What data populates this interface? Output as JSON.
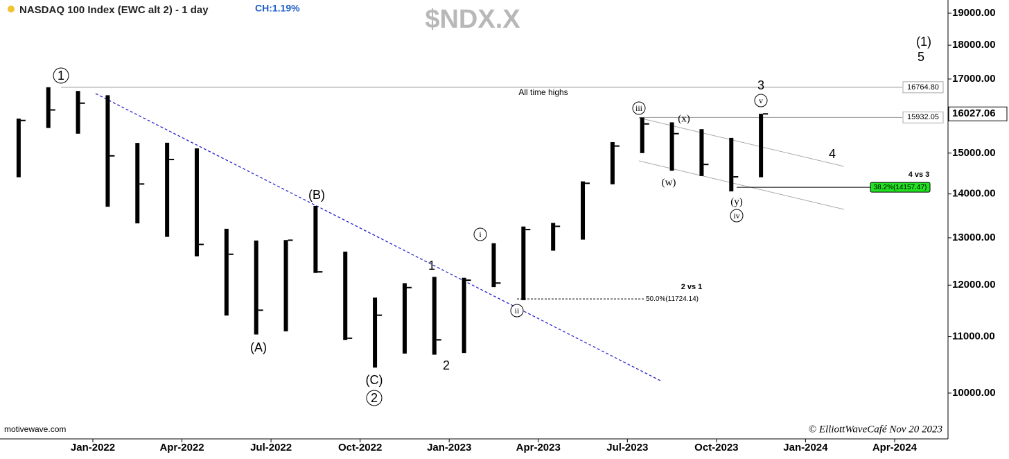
{
  "chart_data": {
    "type": "ohlc",
    "title": "NASDAQ 100 Index (EWC alt 2) - 1 day",
    "change": "CH:1.19%",
    "symbol": "$NDX.X",
    "source": "motivewave.com",
    "credit": "© ElliottWaveCafé Nov 20 2023",
    "x": [
      "2021-10",
      "2021-11",
      "2021-12",
      "2022-01",
      "2022-02",
      "2022-03",
      "2022-04",
      "2022-05",
      "2022-06",
      "2022-07",
      "2022-08",
      "2022-09",
      "2022-10",
      "2022-11",
      "2022-12",
      "2023-01",
      "2023-02",
      "2023-03",
      "2023-04",
      "2023-05",
      "2023-06",
      "2023-07",
      "2023-08",
      "2023-09",
      "2023-10",
      "2023-11"
    ],
    "high": [
      15900,
      16765,
      16660,
      16540,
      15260,
      15265,
      15120,
      13200,
      12940,
      12950,
      13720,
      12700,
      11750,
      12040,
      12170,
      12150,
      12880,
      13250,
      13330,
      14300,
      15280,
      15930,
      15800,
      15620,
      15390,
      16030
    ],
    "low": [
      14400,
      15650,
      15500,
      13700,
      13320,
      13020,
      12600,
      11400,
      11040,
      11100,
      12250,
      10940,
      10440,
      10690,
      10670,
      10700,
      11960,
      11700,
      12720,
      12960,
      14230,
      15000,
      14560,
      14430,
      14060,
      14400
    ],
    "close": [
      15850,
      16135,
      16320,
      14930,
      14237,
      14838,
      12855,
      12643,
      11503,
      12947,
      12272,
      10971,
      11406,
      11951,
      10940,
      12101,
      12043,
      13182,
      13254,
      14254,
      15180,
      15758,
      15501,
      14715,
      14410,
      16027
    ],
    "color": "#000000",
    "log_scale": true,
    "ylim": [
      9255,
      19428
    ],
    "yticks": [
      {
        "value": 10000,
        "label": "10000.00"
      },
      {
        "value": 11000,
        "label": "11000.00"
      },
      {
        "value": 12000,
        "label": "12000.00"
      },
      {
        "value": 13000,
        "label": "13000.00"
      },
      {
        "value": 14000,
        "label": "14000.00"
      },
      {
        "value": 15000,
        "label": "15000.00"
      },
      {
        "value": 16000,
        "label": "16000.00"
      },
      {
        "value": 17000,
        "label": "17000.00"
      },
      {
        "value": 18000,
        "label": "18000.00"
      },
      {
        "value": 19000,
        "label": "19000.00"
      }
    ],
    "xticks": [
      {
        "value": "2022-01",
        "label": "Jan-2022"
      },
      {
        "value": "2022-04",
        "label": "Apr-2022"
      },
      {
        "value": "2022-07",
        "label": "Jul-2022"
      },
      {
        "value": "2022-10",
        "label": "Oct-2022"
      },
      {
        "value": "2023-01",
        "label": "Jan-2023"
      },
      {
        "value": "2023-04",
        "label": "Apr-2023"
      },
      {
        "value": "2023-07",
        "label": "Jul-2023"
      },
      {
        "value": "2023-10",
        "label": "Oct-2023"
      },
      {
        "value": "2024-01",
        "label": "Jan-2024"
      },
      {
        "value": "2024-04",
        "label": "Apr-2024"
      }
    ],
    "levels": [
      {
        "value": 16764.8,
        "label": "16764.80"
      },
      {
        "value": 15932.05,
        "label": "15932.05"
      }
    ],
    "last_price": {
      "value": 16027.06,
      "label": "16027.06"
    },
    "fib": [
      {
        "value": 11724.14,
        "label": "50.0%(11724.14)"
      },
      {
        "value": 14157.47,
        "label": "38.2%(14157.47)"
      }
    ],
    "annotations": [
      "1",
      "(B)",
      "(A)",
      "(C)",
      "2",
      "1",
      "2",
      "i",
      "ii",
      "iii",
      "(x)",
      "(w)",
      "(y)",
      "iv",
      "v",
      "3",
      "4",
      "(1)",
      "5",
      "All time highs",
      "2 vs 1",
      "4 vs 3"
    ]
  }
}
